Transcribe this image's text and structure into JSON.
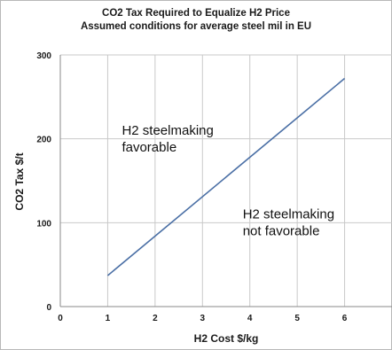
{
  "chart_data": {
    "type": "line",
    "title": "CO2 Tax Required to Equalize H2 Price",
    "subtitle": "Assumed conditions for average steel mil in EU",
    "xlabel": "H2 Cost $/kg",
    "ylabel": "CO2 Tax $/t",
    "xlim": [
      0,
      7
    ],
    "ylim": [
      0,
      300
    ],
    "x_ticks": [
      0,
      1,
      2,
      3,
      4,
      5,
      6
    ],
    "y_ticks": [
      0,
      100,
      200,
      300
    ],
    "grid": true,
    "legend": "none",
    "series": [
      {
        "color": "#4a6fa5",
        "x": [
          1,
          6
        ],
        "y": [
          37,
          272
        ]
      }
    ],
    "annotations": [
      {
        "lines": [
          "H2 steelmaking",
          "favorable"
        ],
        "x": 1.3,
        "y": 205
      },
      {
        "lines": [
          "H2 steelmaking",
          "not favorable"
        ],
        "x": 3.85,
        "y": 105
      }
    ]
  }
}
